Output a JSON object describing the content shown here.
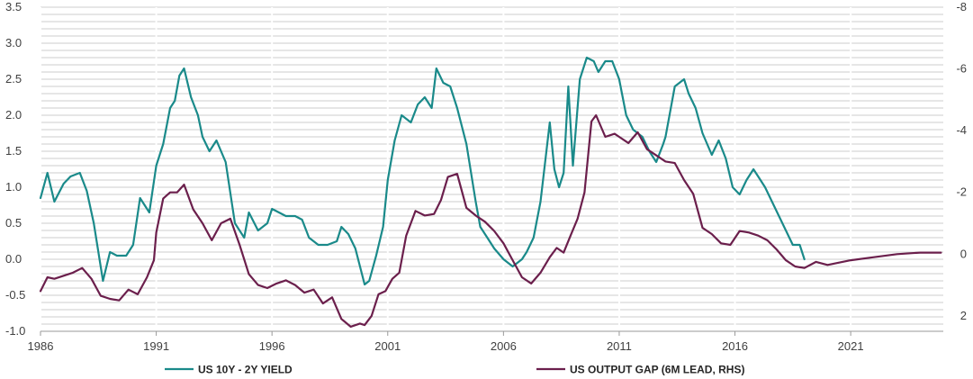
{
  "chart_data": {
    "type": "line",
    "title": "",
    "xlabel": "",
    "ylabel": "",
    "y2label": "",
    "xlim": [
      1986,
      2025
    ],
    "ylim": [
      -1.0,
      3.5
    ],
    "y2lim": [
      2.5,
      -8.0
    ],
    "y2_inverted": true,
    "grid": "horizontal",
    "legend_position": "bottom",
    "x_ticks": [
      1986,
      1991,
      1996,
      2001,
      2006,
      2011,
      2016,
      2021
    ],
    "y_ticks": [
      3.5,
      3.0,
      2.5,
      2.0,
      1.5,
      1.0,
      0.5,
      0.0,
      -0.5,
      -1.0
    ],
    "y_tick_labels": [
      "3.5",
      "3.0",
      "2.5",
      "2.0",
      "1.5",
      "1.0",
      "0.5",
      "0.0",
      "-0.5",
      "-1.0"
    ],
    "y2_ticks": [
      -8,
      -6,
      -4,
      -2,
      0,
      2
    ],
    "y2_tick_labels": [
      "-8",
      "-6",
      "-4",
      "-2",
      "0",
      "2"
    ],
    "series": [
      {
        "name": "US 10Y - 2Y YIELD",
        "color": "#1a8a8a",
        "axis": "left",
        "x": [
          1986.0,
          1986.3,
          1986.6,
          1987.0,
          1987.3,
          1987.7,
          1988.0,
          1988.3,
          1988.7,
          1989.0,
          1989.3,
          1989.7,
          1990.0,
          1990.3,
          1990.7,
          1991.0,
          1991.3,
          1991.6,
          1991.8,
          1992.0,
          1992.2,
          1992.5,
          1992.8,
          1993.0,
          1993.3,
          1993.6,
          1994.0,
          1994.4,
          1994.8,
          1995.0,
          1995.4,
          1995.8,
          1996.0,
          1996.3,
          1996.6,
          1997.0,
          1997.3,
          1997.6,
          1998.0,
          1998.4,
          1998.8,
          1999.0,
          1999.3,
          1999.6,
          2000.0,
          2000.2,
          2000.5,
          2000.8,
          2001.0,
          2001.3,
          2001.6,
          2002.0,
          2002.3,
          2002.6,
          2002.9,
          2003.1,
          2003.4,
          2003.7,
          2004.0,
          2004.4,
          2004.8,
          2005.0,
          2005.3,
          2005.6,
          2006.0,
          2006.4,
          2006.8,
          2007.0,
          2007.3,
          2007.6,
          2008.0,
          2008.2,
          2008.4,
          2008.6,
          2008.8,
          2009.0,
          2009.3,
          2009.6,
          2009.9,
          2010.1,
          2010.4,
          2010.7,
          2011.0,
          2011.3,
          2011.6,
          2012.0,
          2012.3,
          2012.6,
          2012.9,
          2013.0,
          2013.4,
          2013.8,
          2014.0,
          2014.3,
          2014.6,
          2015.0,
          2015.3,
          2015.6,
          2015.9,
          2016.2,
          2016.5,
          2016.8,
          2017.0,
          2017.3,
          2017.6,
          2017.9,
          2018.2,
          2018.5,
          2018.8,
          2019.0
        ],
        "y": [
          0.85,
          1.2,
          0.8,
          1.05,
          1.15,
          1.2,
          0.95,
          0.5,
          -0.3,
          0.1,
          0.05,
          0.05,
          0.2,
          0.85,
          0.65,
          1.3,
          1.6,
          2.1,
          2.2,
          2.55,
          2.65,
          2.25,
          2.0,
          1.7,
          1.5,
          1.65,
          1.35,
          0.5,
          0.3,
          0.65,
          0.4,
          0.5,
          0.7,
          0.65,
          0.6,
          0.6,
          0.55,
          0.3,
          0.2,
          0.2,
          0.25,
          0.45,
          0.35,
          0.15,
          -0.35,
          -0.3,
          0.05,
          0.45,
          1.1,
          1.65,
          2.0,
          1.9,
          2.15,
          2.25,
          2.1,
          2.65,
          2.45,
          2.4,
          2.1,
          1.6,
          0.8,
          0.45,
          0.3,
          0.15,
          0.0,
          -0.1,
          0.0,
          0.1,
          0.3,
          0.8,
          1.9,
          1.25,
          1.0,
          1.2,
          2.4,
          1.3,
          2.5,
          2.8,
          2.75,
          2.6,
          2.75,
          2.75,
          2.5,
          2.0,
          1.8,
          1.7,
          1.5,
          1.35,
          1.6,
          1.7,
          2.4,
          2.5,
          2.3,
          2.1,
          1.75,
          1.45,
          1.65,
          1.4,
          1.0,
          0.9,
          1.1,
          1.25,
          1.15,
          1.0,
          0.8,
          0.6,
          0.4,
          0.2,
          0.2,
          0.0
        ]
      },
      {
        "name": "US OUTPUT GAP (6M LEAD, RHS)",
        "color": "#6b1f4c",
        "axis": "right",
        "x": [
          1986.0,
          1986.3,
          1986.6,
          1987.0,
          1987.4,
          1987.8,
          1988.2,
          1988.6,
          1989.0,
          1989.4,
          1989.8,
          1990.2,
          1990.6,
          1990.9,
          1991.0,
          1991.3,
          1991.6,
          1991.9,
          1992.2,
          1992.6,
          1993.0,
          1993.4,
          1993.8,
          1994.2,
          1994.6,
          1995.0,
          1995.4,
          1995.8,
          1996.2,
          1996.6,
          1997.0,
          1997.4,
          1997.8,
          1998.2,
          1998.6,
          1999.0,
          1999.4,
          1999.8,
          2000.0,
          2000.3,
          2000.6,
          2000.9,
          2001.2,
          2001.5,
          2001.8,
          2002.2,
          2002.6,
          2003.0,
          2003.3,
          2003.6,
          2004.0,
          2004.4,
          2004.8,
          2005.2,
          2005.6,
          2006.0,
          2006.4,
          2006.8,
          2007.2,
          2007.6,
          2008.0,
          2008.3,
          2008.6,
          2008.9,
          2009.2,
          2009.5,
          2009.8,
          2010.0,
          2010.4,
          2010.8,
          2011.0,
          2011.4,
          2011.8,
          2012.2,
          2012.6,
          2013.0,
          2013.4,
          2013.8,
          2014.2,
          2014.6,
          2015.0,
          2015.4,
          2015.8,
          2016.2,
          2016.6,
          2017.0,
          2017.4,
          2017.8,
          2018.2,
          2018.6,
          2019.0,
          2019.5,
          2020.0,
          2021.0,
          2022.0,
          2023.0,
          2024.0,
          2024.9
        ],
        "y": [
          1.2,
          0.75,
          0.8,
          0.7,
          0.6,
          0.45,
          0.8,
          1.35,
          1.45,
          1.5,
          1.15,
          1.3,
          0.75,
          0.2,
          -0.7,
          -1.8,
          -2.0,
          -2.0,
          -2.25,
          -1.45,
          -1.0,
          -0.45,
          -1.0,
          -1.15,
          -0.3,
          0.65,
          1.0,
          1.1,
          0.95,
          0.85,
          1.0,
          1.25,
          1.15,
          1.6,
          1.4,
          2.1,
          2.35,
          2.25,
          2.3,
          2.0,
          1.3,
          1.2,
          0.8,
          0.6,
          -0.6,
          -1.4,
          -1.25,
          -1.3,
          -1.75,
          -2.5,
          -2.6,
          -1.5,
          -1.25,
          -1.05,
          -0.75,
          -0.35,
          0.2,
          0.75,
          0.95,
          0.6,
          0.1,
          -0.2,
          -0.05,
          -0.6,
          -1.15,
          -2.0,
          -4.3,
          -4.5,
          -3.8,
          -3.9,
          -3.8,
          -3.6,
          -3.95,
          -3.4,
          -3.2,
          -3.0,
          -2.95,
          -2.4,
          -1.95,
          -0.85,
          -0.65,
          -0.35,
          -0.3,
          -0.75,
          -0.7,
          -0.6,
          -0.45,
          -0.15,
          0.2,
          0.4,
          0.45,
          0.25,
          0.35,
          0.2,
          0.1,
          0.0,
          -0.05,
          -0.05
        ]
      }
    ]
  }
}
